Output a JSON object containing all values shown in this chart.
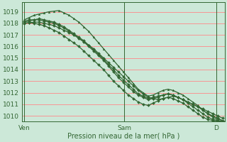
{
  "title": "",
  "xlabel": "Pression niveau de la mer( hPa )",
  "ylabel": "",
  "bg_color": "#cce8d8",
  "plot_bg_color": "#cce8d8",
  "grid_color_h": "#ff8888",
  "grid_color_v": "#aaccbb",
  "line_color": "#336633",
  "axis_color": "#336633",
  "ylim": [
    1009.5,
    1019.8
  ],
  "yticks": [
    1010,
    1011,
    1012,
    1013,
    1014,
    1015,
    1016,
    1017,
    1018,
    1019
  ],
  "xlim": [
    0,
    95
  ],
  "xtick_positions": [
    1,
    48,
    91
  ],
  "xtick_labels": [
    "Ven",
    "Sam",
    "D"
  ],
  "series": [
    [
      1018.0,
      1018.05,
      1018.1,
      1018.1,
      1018.0,
      1017.9,
      1017.8,
      1017.6,
      1017.4,
      1017.2,
      1017.0,
      1016.7,
      1016.4,
      1016.1,
      1015.8,
      1015.4,
      1015.0,
      1014.6,
      1014.2,
      1013.8,
      1013.4,
      1013.0,
      1012.6,
      1012.2,
      1011.9,
      1011.6,
      1011.5,
      1011.4,
      1011.5,
      1011.6,
      1011.7,
      1011.6,
      1011.4,
      1011.2,
      1011.0,
      1010.8,
      1010.6,
      1010.4,
      1010.2,
      1010.0,
      1009.8
    ],
    [
      1018.2,
      1018.3,
      1018.3,
      1018.4,
      1018.3,
      1018.2,
      1018.1,
      1017.9,
      1017.7,
      1017.4,
      1017.1,
      1016.8,
      1016.5,
      1016.1,
      1015.7,
      1015.3,
      1014.9,
      1014.4,
      1014.0,
      1013.5,
      1013.1,
      1012.7,
      1012.3,
      1011.9,
      1011.7,
      1011.5,
      1011.6,
      1011.7,
      1011.8,
      1011.9,
      1011.8,
      1011.6,
      1011.4,
      1011.2,
      1011.0,
      1010.8,
      1010.5,
      1010.2,
      1010.0,
      1009.8,
      1009.6
    ],
    [
      1018.3,
      1018.5,
      1018.7,
      1018.8,
      1018.9,
      1019.0,
      1019.05,
      1019.1,
      1018.9,
      1018.7,
      1018.4,
      1018.1,
      1017.7,
      1017.3,
      1016.8,
      1016.3,
      1015.8,
      1015.3,
      1014.8,
      1014.3,
      1013.8,
      1013.3,
      1012.8,
      1012.3,
      1012.0,
      1011.7,
      1011.8,
      1012.0,
      1012.2,
      1012.3,
      1012.2,
      1012.0,
      1011.8,
      1011.5,
      1011.2,
      1010.9,
      1010.5,
      1010.2,
      1009.9,
      1009.7,
      1009.6
    ],
    [
      1018.1,
      1018.2,
      1018.3,
      1018.3,
      1018.2,
      1018.1,
      1018.0,
      1017.8,
      1017.6,
      1017.3,
      1017.0,
      1016.7,
      1016.4,
      1016.0,
      1015.6,
      1015.2,
      1014.8,
      1014.3,
      1013.8,
      1013.3,
      1012.9,
      1012.5,
      1012.1,
      1011.8,
      1011.6,
      1011.4,
      1011.5,
      1011.6,
      1011.8,
      1011.9,
      1011.8,
      1011.6,
      1011.4,
      1011.1,
      1010.8,
      1010.5,
      1010.2,
      1009.9,
      1009.7,
      1009.6,
      1009.5
    ],
    [
      1018.0,
      1018.05,
      1018.0,
      1017.9,
      1017.8,
      1017.6,
      1017.4,
      1017.2,
      1016.9,
      1016.6,
      1016.3,
      1016.0,
      1015.6,
      1015.2,
      1014.8,
      1014.4,
      1014.0,
      1013.5,
      1013.0,
      1012.6,
      1012.2,
      1011.8,
      1011.5,
      1011.2,
      1011.0,
      1010.9,
      1011.1,
      1011.3,
      1011.5,
      1011.6,
      1011.5,
      1011.3,
      1011.1,
      1010.8,
      1010.5,
      1010.2,
      1009.9,
      1009.7,
      1009.6,
      1009.55,
      1009.5
    ]
  ],
  "markers": [
    "D",
    "D",
    "^",
    "D",
    "D"
  ],
  "marker_size": 2.0,
  "line_width": 0.9
}
